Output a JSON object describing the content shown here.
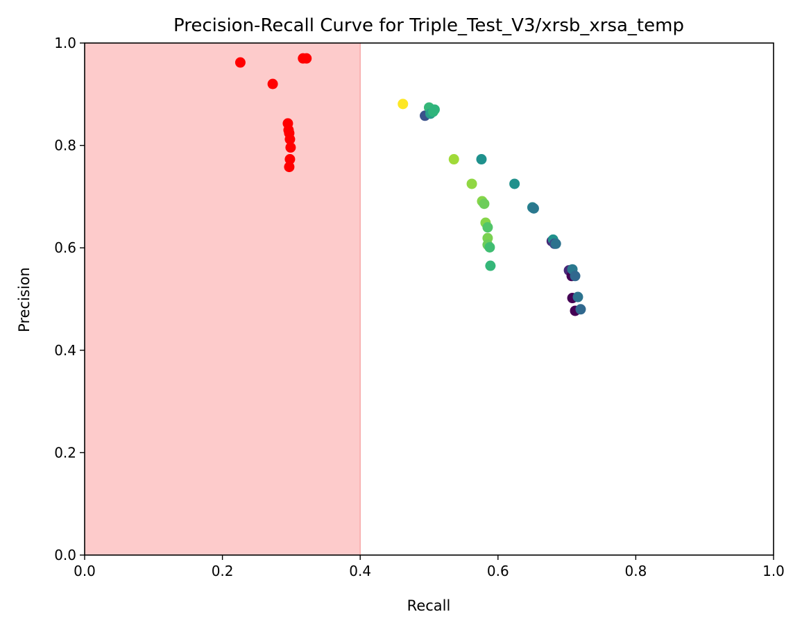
{
  "chart_data": {
    "type": "scatter",
    "title": "Precision-Recall Curve for Triple_Test_V3/xrsb_xrsa_temp",
    "xlabel": "Recall",
    "ylabel": "Precision",
    "xlim": [
      0.0,
      1.0
    ],
    "ylim": [
      0.0,
      1.0
    ],
    "x_ticks": [
      "0.0",
      "0.2",
      "0.4",
      "0.6",
      "0.8",
      "1.0"
    ],
    "y_ticks": [
      "0.0",
      "0.2",
      "0.4",
      "0.6",
      "0.8",
      "1.0"
    ],
    "grid": false,
    "legend": "none",
    "shaded_region": {
      "x_from": 0.0,
      "x_to": 0.4,
      "color": "#fdcbcb"
    },
    "series": [
      {
        "color": "#ff0000",
        "points": [
          [
            0.226,
            0.962
          ],
          [
            0.273,
            0.92
          ],
          [
            0.317,
            0.97
          ],
          [
            0.322,
            0.97
          ],
          [
            0.295,
            0.843
          ],
          [
            0.296,
            0.83
          ],
          [
            0.297,
            0.824
          ],
          [
            0.298,
            0.812
          ],
          [
            0.299,
            0.796
          ],
          [
            0.298,
            0.773
          ],
          [
            0.297,
            0.758
          ]
        ]
      },
      {
        "color": "viridis",
        "points": [
          {
            "x": 0.462,
            "y": 0.881,
            "color": "#fde725"
          },
          {
            "x": 0.494,
            "y": 0.858,
            "color": "#3b528b"
          },
          {
            "x": 0.5,
            "y": 0.874,
            "color": "#35b779"
          },
          {
            "x": 0.502,
            "y": 0.862,
            "color": "#2a9d8a"
          },
          {
            "x": 0.506,
            "y": 0.866,
            "color": "#2fb47c"
          },
          {
            "x": 0.508,
            "y": 0.87,
            "color": "#2fb47c"
          },
          {
            "x": 0.536,
            "y": 0.773,
            "color": "#a0da39"
          },
          {
            "x": 0.576,
            "y": 0.773,
            "color": "#1f918d"
          },
          {
            "x": 0.562,
            "y": 0.725,
            "color": "#90d743"
          },
          {
            "x": 0.577,
            "y": 0.691,
            "color": "#86d549"
          },
          {
            "x": 0.58,
            "y": 0.686,
            "color": "#6ccd5a"
          },
          {
            "x": 0.582,
            "y": 0.649,
            "color": "#86d549"
          },
          {
            "x": 0.585,
            "y": 0.64,
            "color": "#52c569"
          },
          {
            "x": 0.585,
            "y": 0.619,
            "color": "#7ad151"
          },
          {
            "x": 0.585,
            "y": 0.606,
            "color": "#6ccd5a"
          },
          {
            "x": 0.588,
            "y": 0.601,
            "color": "#40bd72"
          },
          {
            "x": 0.589,
            "y": 0.565,
            "color": "#35b779"
          },
          {
            "x": 0.624,
            "y": 0.725,
            "color": "#21918c"
          },
          {
            "x": 0.65,
            "y": 0.679,
            "color": "#26828e"
          },
          {
            "x": 0.652,
            "y": 0.677,
            "color": "#2a788e"
          },
          {
            "x": 0.678,
            "y": 0.613,
            "color": "#482878"
          },
          {
            "x": 0.68,
            "y": 0.616,
            "color": "#21918c"
          },
          {
            "x": 0.682,
            "y": 0.608,
            "color": "#3e4989"
          },
          {
            "x": 0.684,
            "y": 0.608,
            "color": "#2c728e"
          },
          {
            "x": 0.703,
            "y": 0.556,
            "color": "#482878"
          },
          {
            "x": 0.707,
            "y": 0.545,
            "color": "#440154"
          },
          {
            "x": 0.708,
            "y": 0.558,
            "color": "#2a788e"
          },
          {
            "x": 0.712,
            "y": 0.545,
            "color": "#31688e"
          },
          {
            "x": 0.708,
            "y": 0.502,
            "color": "#440154"
          },
          {
            "x": 0.716,
            "y": 0.504,
            "color": "#2c728e"
          },
          {
            "x": 0.712,
            "y": 0.477,
            "color": "#440154"
          },
          {
            "x": 0.72,
            "y": 0.48,
            "color": "#31688e"
          }
        ]
      }
    ]
  }
}
